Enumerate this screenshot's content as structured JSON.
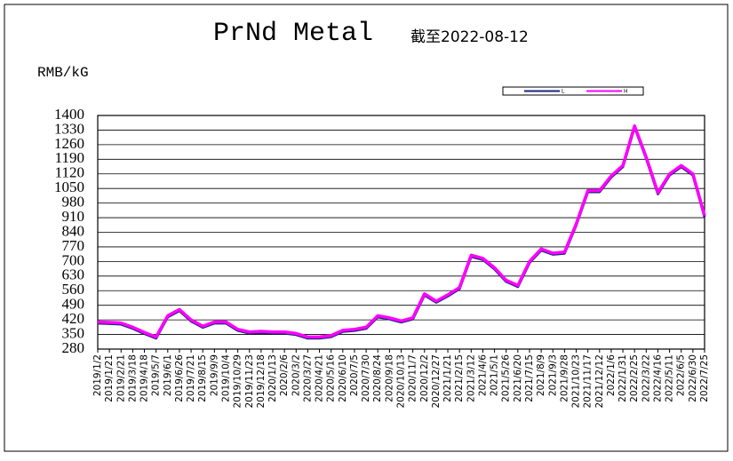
{
  "chart_data": {
    "type": "line",
    "title": "PrNd Metal",
    "subtitle": "截至2022-08-12",
    "y_label": "RMB/kG",
    "categories": [
      "2019/1/2",
      "2019/1/21",
      "2019/2/21",
      "2019/3/18",
      "2019/4/18",
      "2019/5/7",
      "2019/6/1",
      "2019/6/26",
      "2019/7/21",
      "2019/8/15",
      "2019/9/9",
      "2019/10/4",
      "2019/10/29",
      "2019/11/23",
      "2019/12/18",
      "2020/1/13",
      "2020/2/6",
      "2020/3/2",
      "2020/3/27",
      "2020/4/21",
      "2020/5/16",
      "2020/6/10",
      "2020/7/5",
      "2020/7/30",
      "2020/8/24",
      "2020/9/18",
      "2020/10/13",
      "2020/11/7",
      "2020/12/2",
      "2020/12/27",
      "2021/1/21",
      "2021/2/15",
      "2021/3/12",
      "2021/4/6",
      "2021/5/1",
      "2021/5/26",
      "2021/6/20",
      "2021/7/15",
      "2021/8/9",
      "2021/9/3",
      "2021/9/28",
      "2021/10/23",
      "2021/11/17",
      "2021/12/12",
      "2022/1/6",
      "2022/1/31",
      "2022/2/25",
      "2022/3/22",
      "2022/4/16",
      "2022/5/11",
      "2022/6/5",
      "2022/6/30",
      "2022/7/25"
    ],
    "series": [
      {
        "name": "L",
        "color": "#1a237e",
        "values": [
          404,
          402,
          399,
          379,
          354,
          332,
          434,
          464,
          414,
          384,
          404,
          404,
          369,
          356,
          359,
          356,
          356,
          349,
          332,
          332,
          339,
          364,
          369,
          379,
          434,
          424,
          409,
          424,
          539,
          504,
          534,
          569,
          724,
          709,
          664,
          604,
          579,
          694,
          754,
          734,
          739,
          874,
          1034,
          1034,
          1104,
          1154,
          1344,
          1194,
          1024,
          1114,
          1154,
          1114,
          914
        ]
      },
      {
        "name": "H",
        "color": "#ff00ff",
        "values": [
          410,
          408,
          405,
          385,
          360,
          338,
          440,
          470,
          420,
          390,
          410,
          410,
          375,
          362,
          365,
          362,
          362,
          355,
          338,
          338,
          345,
          370,
          375,
          385,
          440,
          430,
          415,
          430,
          545,
          510,
          540,
          575,
          730,
          715,
          670,
          610,
          585,
          700,
          760,
          740,
          745,
          880,
          1040,
          1040,
          1110,
          1160,
          1350,
          1200,
          1030,
          1120,
          1160,
          1120,
          920
        ]
      }
    ],
    "ylim": [
      280,
      1400
    ],
    "yticks": [
      280,
      350,
      420,
      490,
      560,
      630,
      700,
      770,
      840,
      910,
      980,
      1050,
      1120,
      1190,
      1260,
      1330,
      1400
    ],
    "grid": true
  }
}
